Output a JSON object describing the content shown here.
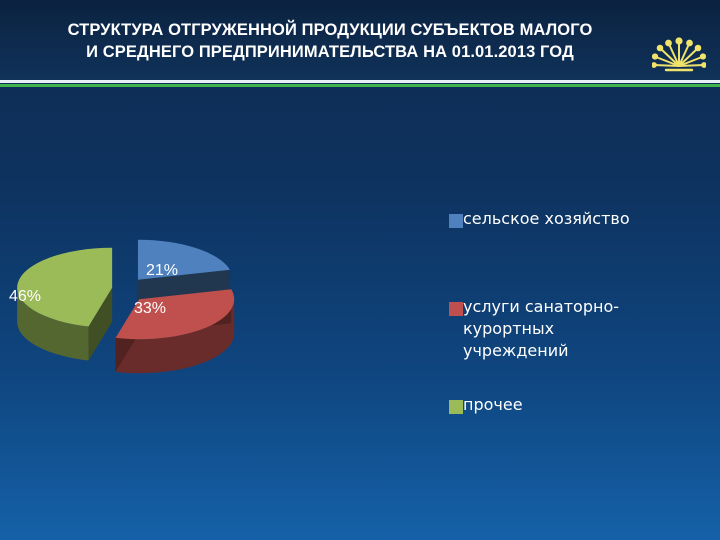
{
  "slide": {
    "title_line1": "СТРУКТУРА ОТГРУЖЕННОЙ ПРОДУКЦИИ СУБЪЕКТОВ МАЛОГО",
    "title_line2": "И СРЕДНЕГО ПРЕДПРИНИМАТЕЛЬСТВА НА 01.01.2013 ГОД",
    "accent_color": "#3fb44a",
    "logo_icon": "flower-logo-icon"
  },
  "chart_data": {
    "type": "pie",
    "title": "",
    "unit": "%",
    "legend_position": "right",
    "exploded": true,
    "slices": [
      {
        "label": "сельское хозяйство",
        "value": 21,
        "display": "21%",
        "color": "#4e81bd"
      },
      {
        "label": "услуги санаторно-курортных учреждений",
        "value": 33,
        "display": "33%",
        "color": "#c0504d"
      },
      {
        "label": "прочее",
        "value": 46,
        "display": "46%",
        "color": "#9bbb59"
      }
    ]
  }
}
